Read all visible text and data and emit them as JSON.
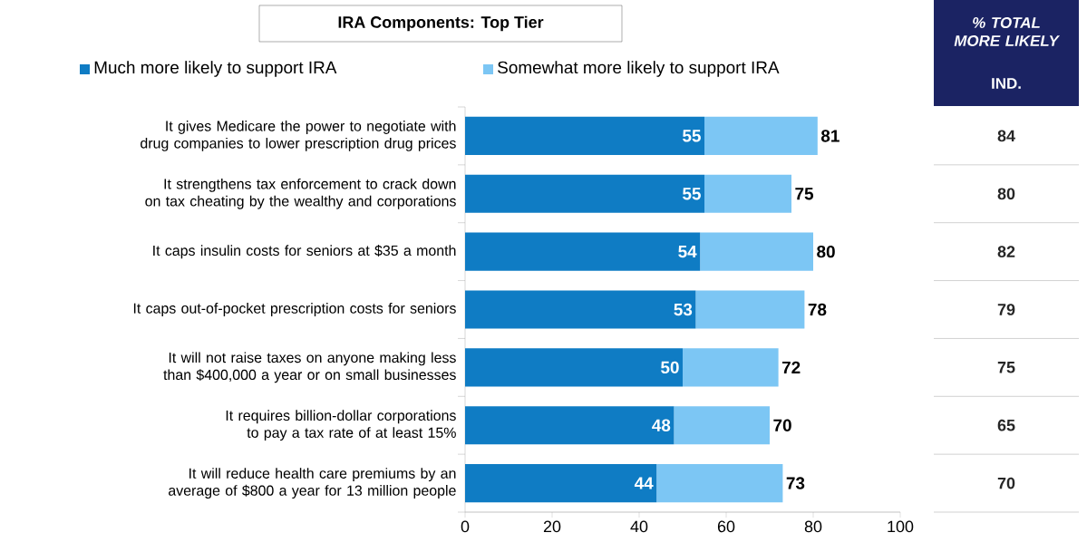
{
  "chart_data": {
    "type": "bar",
    "orientation": "horizontal",
    "stacked": true,
    "title": "IRA Components: Top Tier",
    "categories": [
      "It gives Medicare the power to negotiate with drug companies to lower prescription drug prices",
      "It strengthens tax enforcement to crack down on tax cheating by the wealthy and corporations",
      "It caps insulin costs for seniors at $35 a month",
      "It caps out-of-pocket prescription costs for seniors",
      "It will not raise taxes on anyone making less than $400,000 a year or on small businesses",
      "It requires billion-dollar corporations to pay a tax rate of at least 15%",
      "It will reduce health care premiums by an average of $800 a year for 13 million people"
    ],
    "series": [
      {
        "name": "Much more likely to support IRA",
        "color": "#0f7cc4",
        "values": [
          55,
          55,
          54,
          53,
          50,
          48,
          44
        ],
        "value_labels": [
          "55",
          "55",
          "54",
          "53",
          "50",
          "48",
          "44"
        ]
      },
      {
        "name": "Somewhat more likely to support IRA",
        "color": "#7cc6f4",
        "values": [
          26,
          20,
          26,
          25,
          22,
          22,
          29
        ]
      }
    ],
    "totals": [
      "81",
      "75",
      "80",
      "78",
      "72",
      "70",
      "73"
    ],
    "xlim": [
      0,
      100
    ],
    "xticks": [
      0,
      20,
      40,
      60,
      80,
      100
    ],
    "legend": "top",
    "grid": false,
    "annotations": [
      "% TOTAL MORE LIKELY",
      "IND.",
      "84",
      "80",
      "82",
      "79",
      "75",
      "65",
      "70"
    ]
  }
}
